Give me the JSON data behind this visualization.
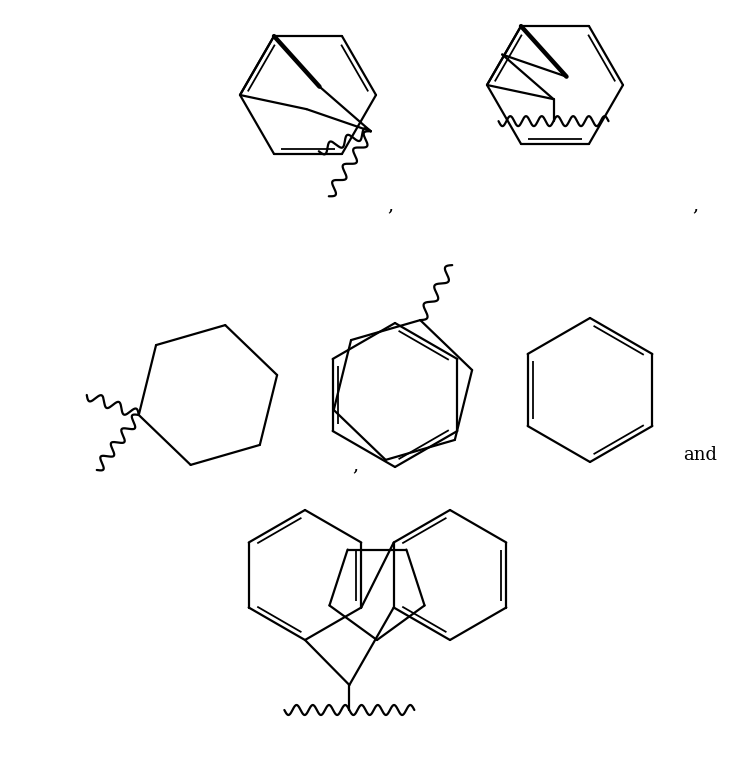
{
  "bg_color": "#ffffff",
  "line_color": "#000000",
  "lw": 1.6,
  "fig_w": 7.54,
  "fig_h": 7.61,
  "dpi": 100
}
